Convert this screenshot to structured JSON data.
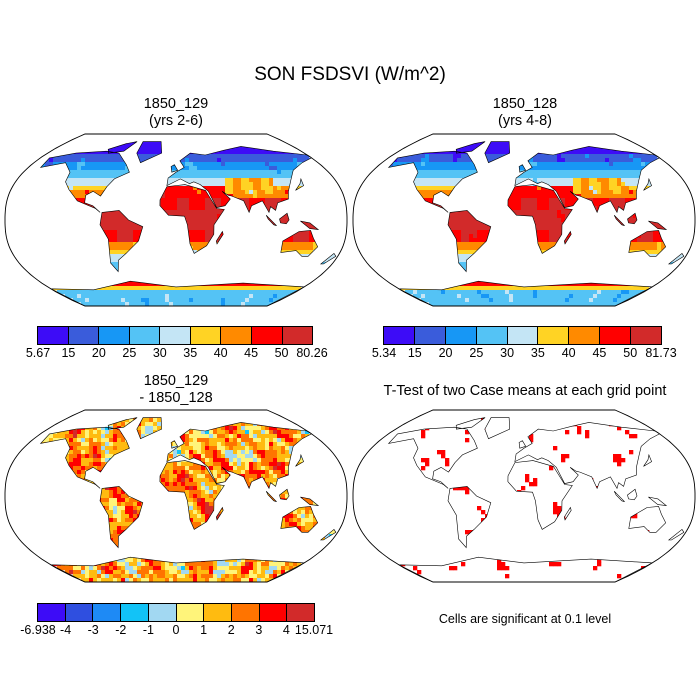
{
  "title": "SON FSDSVI (W/m^2)",
  "panels": [
    {
      "title_line1": "1850_129",
      "title_line2": "(yrs 2-6)",
      "colorbar": {
        "labels": [
          "5.67",
          "15",
          "20",
          "25",
          "30",
          "35",
          "40",
          "45",
          "50",
          "80.26"
        ],
        "colors": [
          "#3d0cf7",
          "#3a5cdb",
          "#1797f5",
          "#54c3f5",
          "#c4e5f5",
          "#ffd324",
          "#ff8a00",
          "#ff0000",
          "#d22a2a"
        ]
      }
    },
    {
      "title_line1": "1850_128",
      "title_line2": "(yrs 4-8)",
      "colorbar": {
        "labels": [
          "5.34",
          "15",
          "20",
          "25",
          "30",
          "35",
          "40",
          "45",
          "50",
          "81.73"
        ],
        "colors": [
          "#3d0cf7",
          "#3a5cdb",
          "#1797f5",
          "#54c3f5",
          "#c4e5f5",
          "#ffd324",
          "#ff8a00",
          "#ff0000",
          "#d22a2a"
        ]
      }
    },
    {
      "title_line1": "1850_129",
      "title_line2": "- 1850_128",
      "colorbar": {
        "labels": [
          "-6.938",
          "-4",
          "-3",
          "-2",
          "-1",
          "0",
          "1",
          "2",
          "3",
          "4",
          "15.071"
        ],
        "colors": [
          "#3d0cf7",
          "#2f4fe0",
          "#1e8af5",
          "#12c3f7",
          "#a2d8f2",
          "#fff47a",
          "#ffbb10",
          "#ff7400",
          "#ff0000",
          "#d22a2a"
        ]
      }
    },
    {
      "title_line1": "T-Test of two Case means at each grid point",
      "note": "Cells are significant at 0.1 level",
      "significant_color": "#ff0000"
    }
  ]
}
